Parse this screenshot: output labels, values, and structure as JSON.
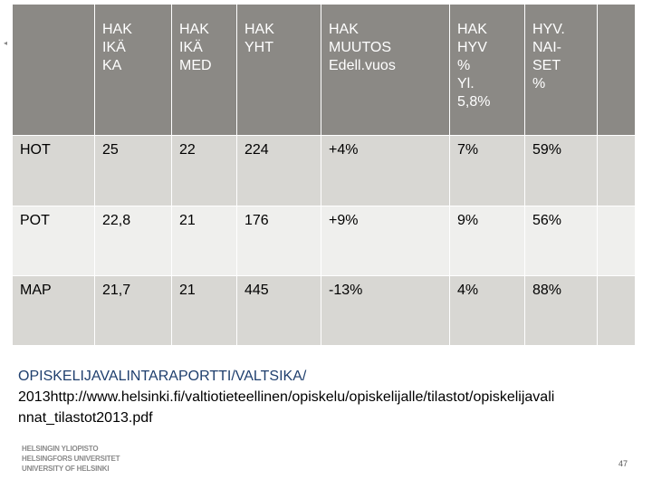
{
  "table": {
    "header": [
      [
        "HAK",
        "IKÄ",
        "KA"
      ],
      [
        "HAK",
        "IKÄ",
        "MED"
      ],
      [
        "HAK",
        "YHT"
      ],
      [
        "HAK",
        "MUUTOS",
        "Edell.vuos"
      ],
      [
        "HAK",
        "HYV",
        "%",
        "Yl.",
        "5,8%"
      ],
      [
        "HYV.",
        "NAI-",
        "SET",
        "%"
      ]
    ],
    "rows": [
      [
        "HOT",
        "25",
        "22",
        "224",
        "+4%",
        "7%",
        "59%"
      ],
      [
        "POT",
        "22,8",
        "21",
        "176",
        "+9%",
        "9%",
        "56%"
      ],
      [
        "MAP",
        "21,7",
        "21",
        "445",
        "-13%",
        "4%",
        "88%"
      ]
    ]
  },
  "source": {
    "lines": [
      "OPISKELIJAVALINTARAPORTTI/VALTSIKA/",
      "2013http://www.helsinki.fi/valtiotieteellinen/opiskelu/opiskelijalle/tilastot/opiskelijavali",
      "nnat_tilastot2013.pdf"
    ]
  },
  "logo": {
    "lines": [
      "HELSINGIN YLIOPISTO",
      "HELSINGFORS UNIVERSITET",
      "UNIVERSITY OF HELSINKI"
    ]
  },
  "page_number": "47"
}
